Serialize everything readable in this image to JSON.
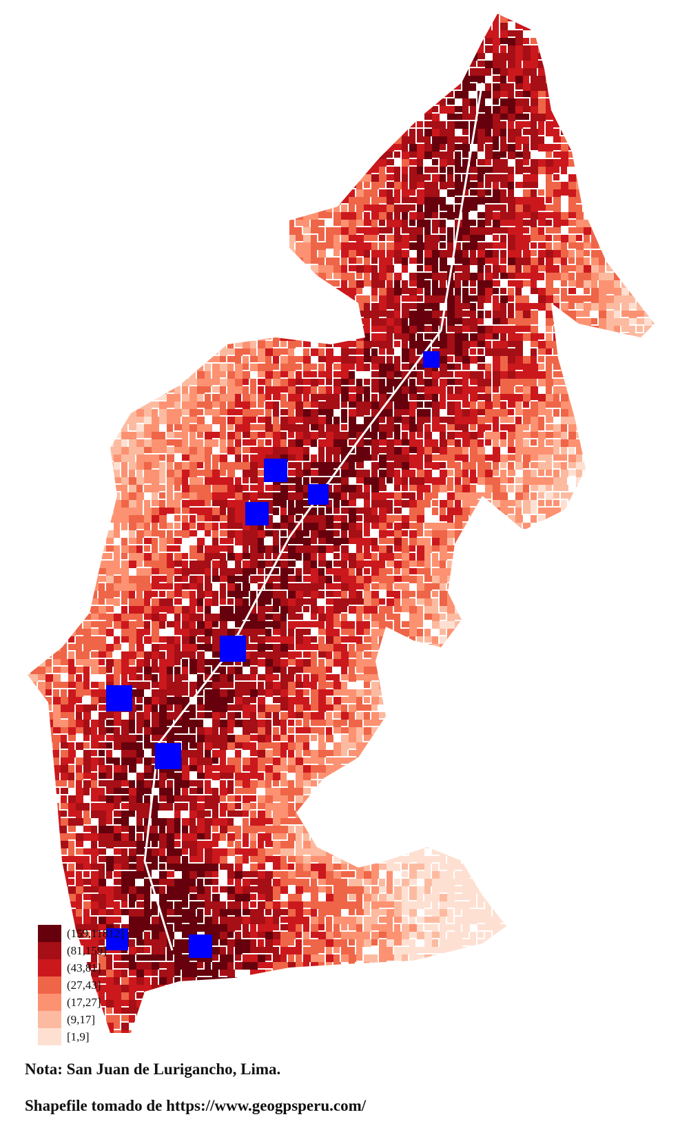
{
  "map": {
    "palette": [
      "#67000d",
      "#a50f15",
      "#cb181d",
      "#ef6548",
      "#fc9272",
      "#fcbba1",
      "#fee0d2"
    ],
    "marker_color": "#0000ff",
    "marker_count": 10
  },
  "legend": {
    "items": [
      {
        "label": "(159,11812]",
        "color": "#67000d"
      },
      {
        "label": "(81,159]",
        "color": "#a50f15"
      },
      {
        "label": "(43,81]",
        "color": "#cb181d"
      },
      {
        "label": "(27,43]",
        "color": "#ef6548"
      },
      {
        "label": "(17,27]",
        "color": "#fc9272"
      },
      {
        "label": "(9,17]",
        "color": "#fcbba1"
      },
      {
        "label": "[1,9]",
        "color": "#fee0d2"
      }
    ]
  },
  "note": {
    "line1": "Nota: San Juan de Lurigancho, Lima.",
    "line2": "Shapefile tomado de https://www.geogpsperu.com/"
  }
}
